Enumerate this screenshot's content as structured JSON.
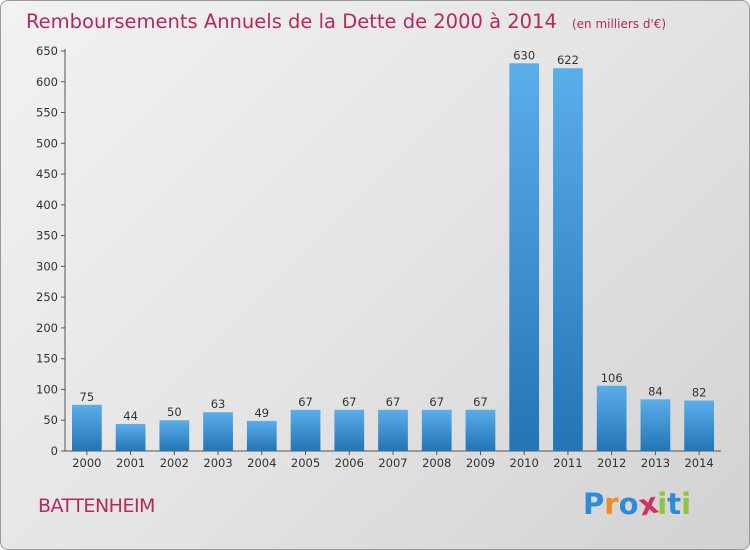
{
  "chart_data": {
    "type": "bar",
    "title": "Remboursements Annuels de la Dette de 2000 à 2014",
    "subtitle": "(en milliers d'€)",
    "categories": [
      "2000",
      "2001",
      "2002",
      "2003",
      "2004",
      "2005",
      "2006",
      "2007",
      "2008",
      "2009",
      "2010",
      "2011",
      "2012",
      "2013",
      "2014"
    ],
    "values": [
      75,
      44,
      50,
      63,
      49,
      67,
      67,
      67,
      67,
      67,
      630,
      622,
      106,
      84,
      82
    ],
    "ylim": [
      0,
      650
    ],
    "yticks": [
      0,
      50,
      100,
      150,
      200,
      250,
      300,
      350,
      400,
      450,
      500,
      550,
      600,
      650
    ],
    "grid": false,
    "legend": "none",
    "bar_color": "#3a8fd6"
  },
  "footer": {
    "town": "BATTENHEIM",
    "logo_letters": [
      "P",
      "r",
      "o",
      "x",
      "i",
      "t",
      "i"
    ],
    "logo_colors": [
      "#2e8bd6",
      "#f08a24",
      "#2e8bd6",
      "#d62e5a",
      "#8cc63f",
      "#2e8bd6",
      "#8cc63f"
    ]
  }
}
